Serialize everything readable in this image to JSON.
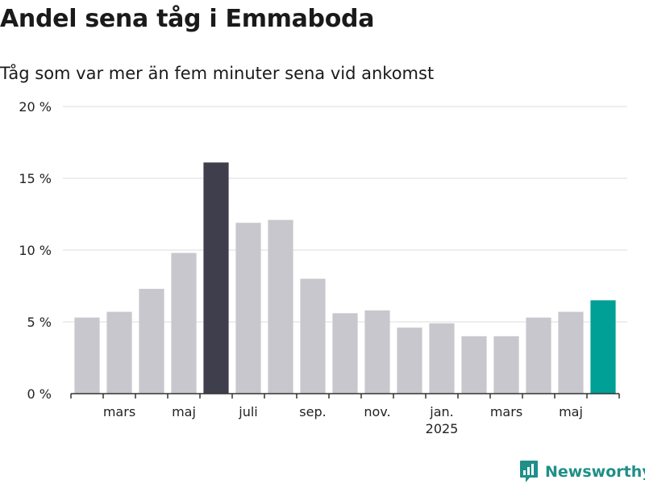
{
  "header": {
    "title": "Andel sena tåg i Emmaboda",
    "subtitle": "Tåg som var mer än fem minuter sena vid ankomst"
  },
  "branding": {
    "name": "Newsworthy",
    "icon": "newsworthy-logo-icon",
    "color": "#1f8f88"
  },
  "chart_data": {
    "type": "bar",
    "title": "Andel sena tåg i Emmaboda",
    "subtitle": "Tåg som var mer än fem minuter sena vid ankomst",
    "categories": [
      "2024-02",
      "2024-03",
      "2024-04",
      "2024-05",
      "2024-06",
      "2024-07",
      "2024-08",
      "2024-09",
      "2024-10",
      "2024-11",
      "2024-12",
      "2025-01",
      "2025-02",
      "2025-03",
      "2025-04",
      "2025-05",
      "2025-06"
    ],
    "values": [
      5.3,
      5.7,
      7.3,
      9.8,
      16.1,
      11.9,
      12.1,
      8.0,
      5.6,
      5.8,
      4.6,
      4.9,
      4.0,
      4.0,
      5.3,
      5.7,
      6.5
    ],
    "highlight": {
      "2024-06": "max",
      "2025-06": "latest"
    },
    "colors": {
      "bar": "#c8c7cd",
      "max": "#3f3e4c",
      "latest": "#00a096",
      "grid": "#dddddd",
      "axis": "#333333"
    },
    "xticks": [
      {
        "category": "2024-03",
        "label": "mars",
        "sublabel": ""
      },
      {
        "category": "2024-05",
        "label": "maj",
        "sublabel": ""
      },
      {
        "category": "2024-07",
        "label": "juli",
        "sublabel": ""
      },
      {
        "category": "2024-09",
        "label": "sep.",
        "sublabel": ""
      },
      {
        "category": "2024-11",
        "label": "nov.",
        "sublabel": ""
      },
      {
        "category": "2025-01",
        "label": "jan.",
        "sublabel": "2025"
      },
      {
        "category": "2025-03",
        "label": "mars",
        "sublabel": ""
      },
      {
        "category": "2025-05",
        "label": "maj",
        "sublabel": ""
      }
    ],
    "yticks": [
      {
        "value": 0,
        "label": "0 %"
      },
      {
        "value": 5,
        "label": "5 %"
      },
      {
        "value": 10,
        "label": "10 %"
      },
      {
        "value": 15,
        "label": "15 %"
      },
      {
        "value": 20,
        "label": "20 %"
      }
    ],
    "ylim": [
      0,
      20
    ],
    "grid": true,
    "legend": "none"
  }
}
